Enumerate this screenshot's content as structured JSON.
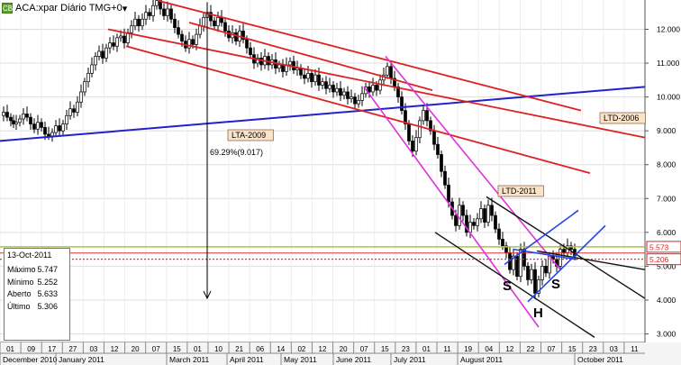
{
  "header": {
    "icon_label": "CB",
    "title": "ACA:xpar Diário TMG+0",
    "chevron": "▾"
  },
  "info_box": {
    "date": "13-Oct-2011",
    "rows": [
      {
        "label": "Máximo",
        "value": "5.747"
      },
      {
        "label": "Mínimo",
        "value": "5.252"
      },
      {
        "label": "Aberto",
        "value": "5.633"
      },
      {
        "label": "Último",
        "value": "5.306"
      }
    ]
  },
  "chart_data": {
    "type": "candlestick",
    "ylim": [
      2.8,
      13.0
    ],
    "y_ticks": [
      "3.000",
      "4.000",
      "5.000",
      "6.000",
      "7.000",
      "8.000",
      "9.000",
      "10.000",
      "11.000",
      "12.000"
    ],
    "day_ticks": [
      "01",
      "09",
      "17",
      "27",
      "03",
      "12",
      "20",
      "07",
      "15",
      "01",
      "10",
      "21",
      "06",
      "14",
      "02",
      "12",
      "20",
      "07",
      "15",
      "23",
      "01",
      "11",
      "19",
      "04",
      "12",
      "22",
      "07",
      "15",
      "23",
      "03",
      "11"
    ],
    "months": [
      "December 2010",
      "January 2011",
      "March 2011",
      "April 2011",
      "May 2011",
      "June 2011",
      "July 2011",
      "August 2011",
      "October 2011"
    ],
    "price_tags": [
      {
        "value": 5.573,
        "label": "5.573",
        "color": "#dd2222"
      },
      {
        "value": 5.206,
        "label": "5.206",
        "color": "#dd2222"
      }
    ],
    "price_path": [
      [
        0,
        9.45
      ],
      [
        4,
        9.55
      ],
      [
        8,
        9.4
      ],
      [
        12,
        9.3
      ],
      [
        15,
        9.2
      ],
      [
        18,
        9.25
      ],
      [
        22,
        9.35
      ],
      [
        26,
        9.5
      ],
      [
        30,
        9.4
      ],
      [
        34,
        9.2
      ],
      [
        38,
        9.05
      ],
      [
        42,
        9.25
      ],
      [
        46,
        9.1
      ],
      [
        50,
        8.9
      ],
      [
        54,
        8.85
      ],
      [
        58,
        8.95
      ],
      [
        62,
        9.15
      ],
      [
        66,
        9.0
      ],
      [
        70,
        9.2
      ],
      [
        74,
        9.45
      ],
      [
        78,
        9.65
      ],
      [
        82,
        9.55
      ],
      [
        86,
        9.85
      ],
      [
        90,
        10.15
      ],
      [
        94,
        10.45
      ],
      [
        98,
        10.7
      ],
      [
        102,
        10.95
      ],
      [
        106,
        11.2
      ],
      [
        110,
        11.35
      ],
      [
        114,
        11.15
      ],
      [
        118,
        11.45
      ],
      [
        122,
        11.6
      ],
      [
        126,
        11.5
      ],
      [
        130,
        11.75
      ],
      [
        134,
        11.8
      ],
      [
        138,
        11.6
      ],
      [
        142,
        11.9
      ],
      [
        146,
        12.1
      ],
      [
        150,
        12.3
      ],
      [
        154,
        12.1
      ],
      [
        158,
        12.3
      ],
      [
        162,
        12.5
      ],
      [
        166,
        12.4
      ],
      [
        170,
        12.7
      ],
      [
        174,
        12.85
      ],
      [
        178,
        12.6
      ],
      [
        182,
        12.4
      ],
      [
        186,
        12.6
      ],
      [
        190,
        12.3
      ],
      [
        194,
        12.05
      ],
      [
        198,
        11.85
      ],
      [
        202,
        11.65
      ],
      [
        206,
        11.45
      ],
      [
        210,
        11.7
      ],
      [
        214,
        11.55
      ],
      [
        218,
        11.85
      ],
      [
        222,
        12.1
      ],
      [
        226,
        12.35
      ],
      [
        230,
        12.5
      ],
      [
        234,
        12.25
      ],
      [
        238,
        12.1
      ],
      [
        242,
        12.35
      ],
      [
        246,
        12.2
      ],
      [
        250,
        11.95
      ],
      [
        254,
        11.75
      ],
      [
        258,
        11.9
      ],
      [
        262,
        11.65
      ],
      [
        266,
        11.95
      ],
      [
        270,
        11.7
      ],
      [
        274,
        11.45
      ],
      [
        278,
        11.25
      ],
      [
        282,
        11.0
      ],
      [
        286,
        11.15
      ],
      [
        290,
        10.95
      ],
      [
        294,
        11.2
      ],
      [
        298,
        10.95
      ],
      [
        302,
        11.1
      ],
      [
        306,
        10.85
      ],
      [
        310,
        10.95
      ],
      [
        314,
        10.75
      ],
      [
        318,
        10.95
      ],
      [
        322,
        11.05
      ],
      [
        326,
        10.8
      ],
      [
        330,
        10.85
      ],
      [
        334,
        10.65
      ],
      [
        338,
        10.55
      ],
      [
        342,
        10.7
      ],
      [
        346,
        10.45
      ],
      [
        350,
        10.65
      ],
      [
        354,
        10.35
      ],
      [
        358,
        10.45
      ],
      [
        362,
        10.25
      ],
      [
        366,
        10.35
      ],
      [
        370,
        10.15
      ],
      [
        374,
        10.25
      ],
      [
        378,
        10.05
      ],
      [
        382,
        10.15
      ],
      [
        386,
        9.95
      ],
      [
        390,
        10.0
      ],
      [
        394,
        9.8
      ],
      [
        398,
        9.9
      ],
      [
        402,
        10.1
      ],
      [
        406,
        10.3
      ],
      [
        410,
        10.15
      ],
      [
        414,
        10.35
      ],
      [
        418,
        10.2
      ],
      [
        422,
        10.5
      ],
      [
        426,
        10.65
      ],
      [
        430,
        10.9
      ],
      [
        434,
        10.55
      ],
      [
        438,
        10.3
      ],
      [
        442,
        10.0
      ],
      [
        446,
        9.6
      ],
      [
        450,
        9.2
      ],
      [
        454,
        8.7
      ],
      [
        458,
        8.4
      ],
      [
        462,
        8.8
      ],
      [
        466,
        9.3
      ],
      [
        470,
        9.6
      ],
      [
        474,
        9.3
      ],
      [
        478,
        9.0
      ],
      [
        482,
        8.6
      ],
      [
        486,
        8.3
      ],
      [
        490,
        7.8
      ],
      [
        494,
        7.4
      ],
      [
        498,
        6.9
      ],
      [
        502,
        6.5
      ],
      [
        506,
        6.2
      ],
      [
        510,
        6.8
      ],
      [
        514,
        6.5
      ],
      [
        518,
        6.0
      ],
      [
        522,
        6.3
      ],
      [
        526,
        6.2
      ],
      [
        530,
        6.4
      ],
      [
        534,
        6.7
      ],
      [
        538,
        6.3
      ],
      [
        542,
        6.8
      ],
      [
        546,
        6.5
      ],
      [
        550,
        6.1
      ],
      [
        554,
        5.8
      ],
      [
        558,
        5.6
      ],
      [
        562,
        5.4
      ],
      [
        566,
        4.9
      ],
      [
        570,
        5.3
      ],
      [
        574,
        4.7
      ],
      [
        578,
        5.5
      ],
      [
        582,
        5.0
      ],
      [
        586,
        4.6
      ],
      [
        590,
        4.9
      ],
      [
        594,
        4.2
      ],
      [
        598,
        4.6
      ],
      [
        602,
        5.0
      ],
      [
        606,
        4.8
      ],
      [
        610,
        5.3
      ],
      [
        614,
        5.2
      ],
      [
        618,
        5.0
      ],
      [
        622,
        5.5
      ],
      [
        626,
        5.4
      ],
      [
        630,
        5.6
      ],
      [
        634,
        5.5
      ],
      [
        638,
        5.3
      ]
    ],
    "annotations": {
      "lta": "LTA-2009",
      "ltd_2006": "LTD-2006",
      "ltd_2011": "LTD-2011",
      "percent": "69.29%(9.017)",
      "s_left": "S",
      "h": "H",
      "s_right": "S"
    },
    "lines": {
      "blue_support": {
        "x1": 0,
        "y1": 8.7,
        "x2": 716,
        "y2": 10.3,
        "color": "#2222cc"
      },
      "red_lines": [
        {
          "x1": 120,
          "y1": 12.0,
          "x2": 716,
          "y2": 8.8
        },
        {
          "x1": 175,
          "y1": 12.85,
          "x2": 645,
          "y2": 9.6
        },
        {
          "x1": 140,
          "y1": 11.5,
          "x2": 655,
          "y2": 7.75
        },
        {
          "x1": 210,
          "y1": 12.2,
          "x2": 480,
          "y2": 10.2
        }
      ],
      "magenta_lines": [
        {
          "x1": 428,
          "y1": 11.2,
          "x2": 622,
          "y2": 4.9
        },
        {
          "x1": 404,
          "y1": 10.3,
          "x2": 598,
          "y2": 3.2
        }
      ],
      "black_lines": [
        {
          "x1": 540,
          "y1": 7.05,
          "x2": 716,
          "y2": 4.05
        },
        {
          "x1": 483,
          "y1": 6.0,
          "x2": 660,
          "y2": 2.9
        },
        {
          "x1": 596,
          "y1": 5.45,
          "x2": 716,
          "y2": 4.9
        }
      ],
      "blue_neck_lines": [
        {
          "x1": 560,
          "y1": 5.05,
          "x2": 642,
          "y2": 6.65
        },
        {
          "x1": 586,
          "y1": 3.95,
          "x2": 672,
          "y2": 6.2
        },
        {
          "x1": 570,
          "y1": 5.5,
          "x2": 640,
          "y2": 5.2
        }
      ],
      "green_h": 5.573,
      "red_h_solid": 5.39,
      "red_h_dotted": 5.206,
      "arrow": {
        "x": 230,
        "y1": 12.8,
        "y2": 4.05
      }
    }
  }
}
